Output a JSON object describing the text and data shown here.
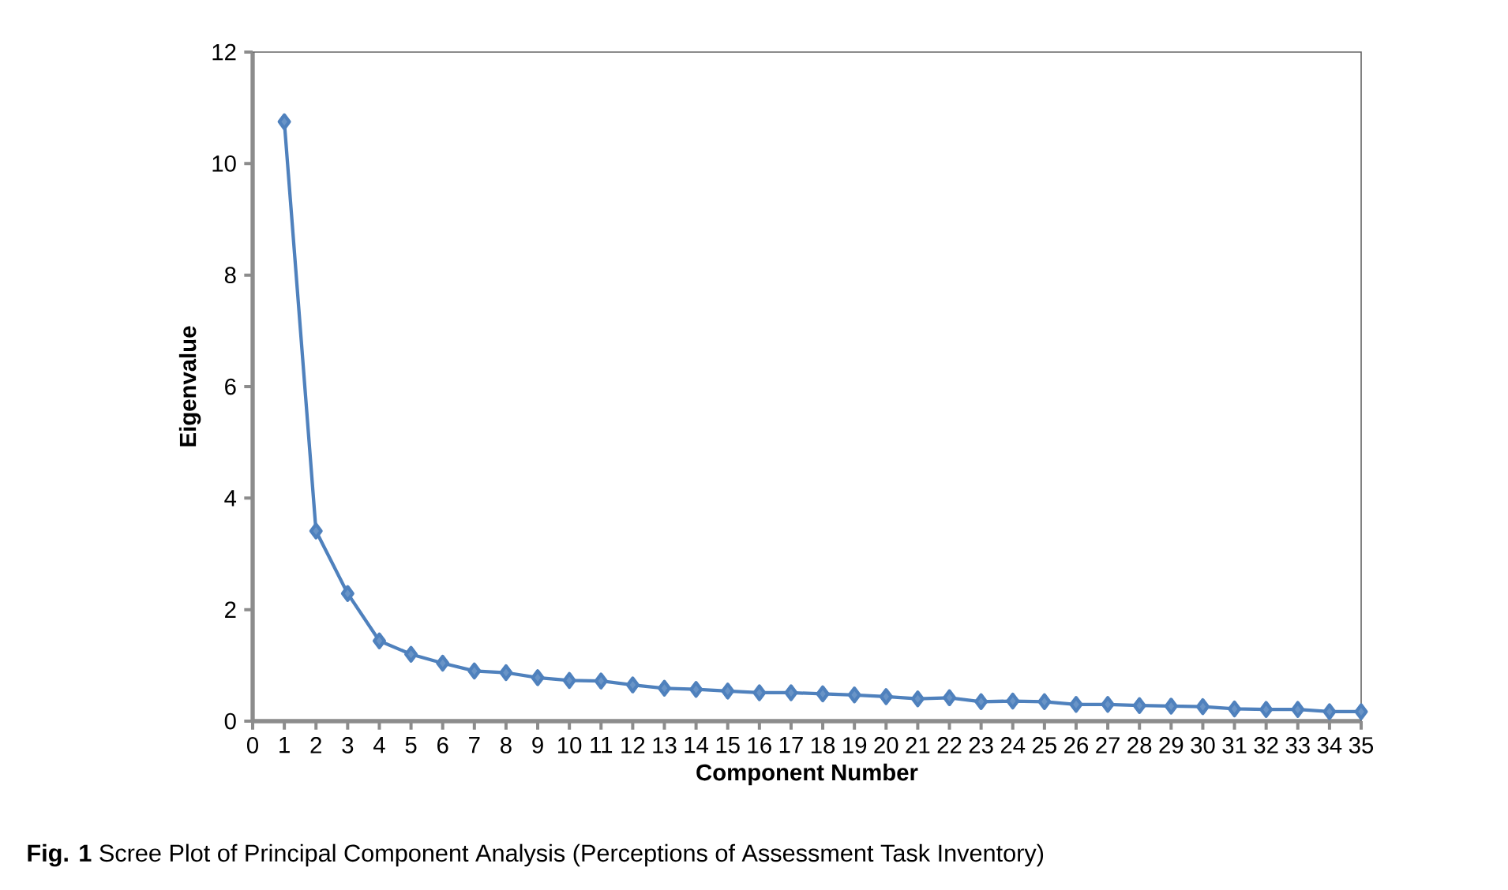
{
  "chart_data": {
    "type": "line",
    "xlabel": "Component Number",
    "ylabel": "Eigenvalue",
    "annotations": [
      "**Fig. 1** Scree Plot of Principal Component Analysis (Perceptions of Assessment Task Inventory)"
    ],
    "x": [
      1,
      2,
      3,
      4,
      5,
      6,
      7,
      8,
      9,
      10,
      11,
      12,
      13,
      14,
      15,
      16,
      17,
      18,
      19,
      20,
      21,
      22,
      23,
      24,
      25,
      26,
      27,
      28,
      29,
      30,
      31,
      32,
      33,
      34,
      35
    ],
    "series": [
      {
        "color": "#4f81bd",
        "values": [
          10.75,
          3.41,
          2.29,
          1.44,
          1.2,
          1.04,
          0.9,
          0.87,
          0.78,
          0.73,
          0.72,
          0.65,
          0.59,
          0.57,
          0.54,
          0.51,
          0.51,
          0.49,
          0.47,
          0.44,
          0.4,
          0.42,
          0.35,
          0.36,
          0.35,
          0.3,
          0.3,
          0.28,
          0.27,
          0.26,
          0.22,
          0.21,
          0.21,
          0.17,
          0.17
        ]
      }
    ],
    "xlim": [
      0,
      35
    ],
    "ylim": [
      0,
      12
    ],
    "xticks": [
      0,
      1,
      2,
      3,
      4,
      5,
      6,
      7,
      8,
      9,
      10,
      11,
      12,
      13,
      14,
      15,
      16,
      17,
      18,
      19,
      20,
      21,
      22,
      23,
      24,
      25,
      26,
      27,
      28,
      29,
      30,
      31,
      32,
      33,
      34,
      35
    ],
    "yticks": [
      0,
      2,
      4,
      6,
      8,
      10,
      12
    ],
    "marker": "diamond",
    "line_style": "solid"
  }
}
